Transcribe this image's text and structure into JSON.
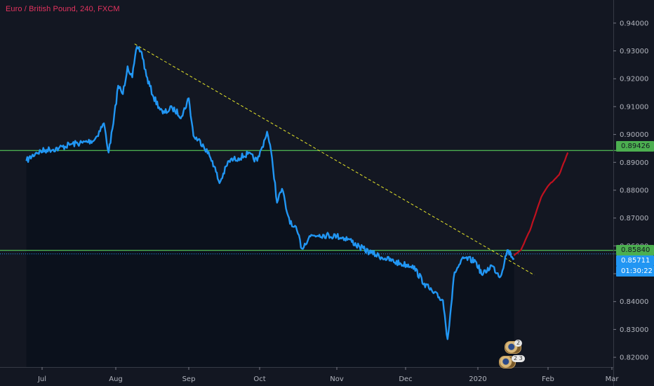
{
  "window": {
    "title": "Euro / British Pound, 240, FXCM"
  },
  "colors": {
    "background": "#131722",
    "price_line": "#2196f3",
    "projection": "#c0111f",
    "horizontal_lines": "#4caf50",
    "trendline": "#e6e62a",
    "title": "#e5335f",
    "axis_text": "#b2b5be"
  },
  "price_tags": {
    "upper_level": "0.89426",
    "lower_level": "0.85840",
    "last_price": "0.85711",
    "countdown": "01:30:22"
  },
  "events": {
    "badge_1": "2",
    "badge_2": "2 3"
  },
  "chart_data": {
    "type": "line",
    "title": "Euro / British Pound, 240, FXCM",
    "x_axis": {
      "type": "time",
      "ticks": [
        "Jul",
        "Aug",
        "Sep",
        "Oct",
        "Nov",
        "Dec",
        "2020",
        "Feb",
        "Mar"
      ]
    },
    "y_axis": {
      "position": "right",
      "ylim": [
        0.8175,
        0.9445
      ],
      "ticks": [
        0.82,
        0.83,
        0.84,
        0.85,
        0.86,
        0.87,
        0.88,
        0.89,
        0.9,
        0.91,
        0.92,
        0.93,
        0.94
      ]
    },
    "grid": false,
    "series": [
      {
        "x": [
          "2019-06-23",
          "2019-06-28",
          "2019-07-03",
          "2019-07-08",
          "2019-07-13",
          "2019-07-18",
          "2019-07-23",
          "2019-07-27",
          "2019-07-29",
          "2019-07-31",
          "2019-08-02",
          "2019-08-04",
          "2019-08-06",
          "2019-08-08",
          "2019-08-10",
          "2019-08-12",
          "2019-08-14",
          "2019-08-17",
          "2019-08-21",
          "2019-08-25",
          "2019-08-29",
          "2019-09-01",
          "2019-09-03",
          "2019-09-07",
          "2019-09-11",
          "2019-09-14",
          "2019-09-18",
          "2019-09-22",
          "2019-09-26",
          "2019-09-30",
          "2019-10-02",
          "2019-10-04",
          "2019-10-06",
          "2019-10-08",
          "2019-10-10",
          "2019-10-12",
          "2019-10-14",
          "2019-10-16",
          "2019-10-18",
          "2019-10-21",
          "2019-10-25",
          "2019-11-01",
          "2019-11-06",
          "2019-11-11",
          "2019-11-16",
          "2019-11-22",
          "2019-11-29",
          "2019-12-04",
          "2019-12-09",
          "2019-12-13",
          "2019-12-17",
          "2019-12-19",
          "2019-12-22",
          "2019-12-26",
          "2019-12-31",
          "2020-01-03",
          "2020-01-07",
          "2020-01-11",
          "2020-01-14",
          "2020-01-17"
        ],
        "y": [
          0.8905,
          0.8935,
          0.8945,
          0.895,
          0.8965,
          0.897,
          0.898,
          0.904,
          0.8935,
          0.904,
          0.9175,
          0.9145,
          0.9245,
          0.9205,
          0.9315,
          0.9295,
          0.921,
          0.9135,
          0.9075,
          0.9095,
          0.9065,
          0.913,
          0.8995,
          0.8965,
          0.8905,
          0.8825,
          0.8905,
          0.8915,
          0.893,
          0.8905,
          0.8955,
          0.901,
          0.8915,
          0.8755,
          0.8805,
          0.872,
          0.867,
          0.8655,
          0.859,
          0.8635,
          0.864,
          0.8635,
          0.8625,
          0.8595,
          0.8575,
          0.8555,
          0.8535,
          0.853,
          0.8465,
          0.843,
          0.8405,
          0.8265,
          0.8505,
          0.8555,
          0.8545,
          0.8495,
          0.853,
          0.849,
          0.8585,
          0.8555
        ]
      },
      {
        "x": [
          "2020-01-17",
          "2020-01-20",
          "2020-01-24",
          "2020-01-29",
          "2020-02-01",
          "2020-02-06",
          "2020-02-10"
        ],
        "y": [
          0.8565,
          0.8585,
          0.8655,
          0.8775,
          0.8815,
          0.8855,
          0.8935
        ]
      }
    ],
    "horizontal_levels": [
      0.89426,
      0.8584
    ],
    "last_price": 0.85711,
    "trendline": {
      "from": {
        "x": "2019-08-09",
        "y": 0.9325
      },
      "to": {
        "x": "2020-01-26",
        "y": 0.8495
      }
    }
  }
}
